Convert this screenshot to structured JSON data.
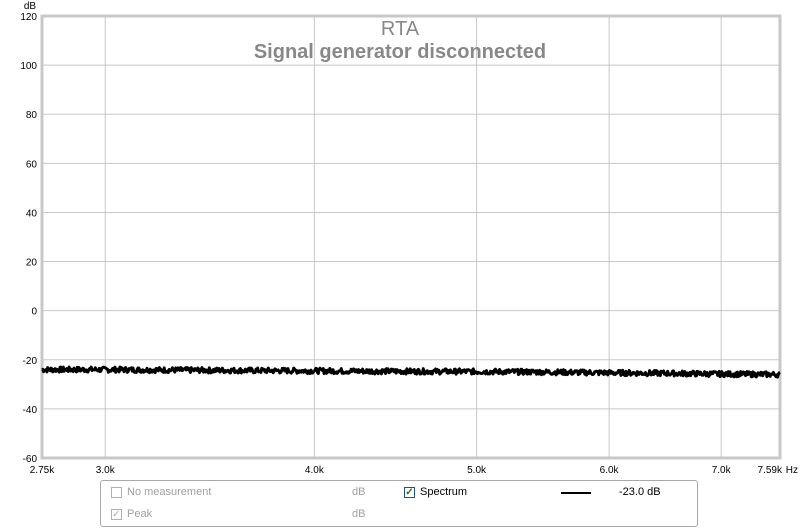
{
  "chart_data": {
    "type": "line",
    "title": "RTA",
    "subtitle": "Signal generator disconnected",
    "ylabel": "dB",
    "xlabel": "Hz",
    "xscale": "log",
    "xlim": [
      2750,
      7590
    ],
    "ylim": [
      -60,
      120
    ],
    "y_ticks": [
      120,
      100,
      80,
      60,
      40,
      20,
      0,
      -20,
      -40,
      -60
    ],
    "x_ticks": [
      {
        "value": 2750,
        "label": "2.75k"
      },
      {
        "value": 3000,
        "label": "3.0k"
      },
      {
        "value": 4000,
        "label": "4.0k"
      },
      {
        "value": 5000,
        "label": "5.0k"
      },
      {
        "value": 6000,
        "label": "6.0k"
      },
      {
        "value": 7000,
        "label": "7.0k"
      },
      {
        "value": 7590,
        "label": "7.59k"
      }
    ],
    "grid": true,
    "series": [
      {
        "name": "Spectrum",
        "color": "#000000",
        "x": [
          2750,
          3000,
          3500,
          4000,
          4500,
          5000,
          5500,
          6000,
          6500,
          7000,
          7590
        ],
        "y": [
          -24,
          -24,
          -24.3,
          -24.5,
          -24.7,
          -24.8,
          -25,
          -25.3,
          -25.5,
          -25.8,
          -26
        ]
      }
    ]
  },
  "legend": {
    "rows": [
      {
        "label": "No measurement",
        "unit": "dB",
        "checked": false
      },
      {
        "label": "Peak",
        "unit": "dB",
        "checked": true
      }
    ],
    "spectrum": {
      "label": "Spectrum",
      "checked": true,
      "value": "-23.0 dB"
    }
  }
}
